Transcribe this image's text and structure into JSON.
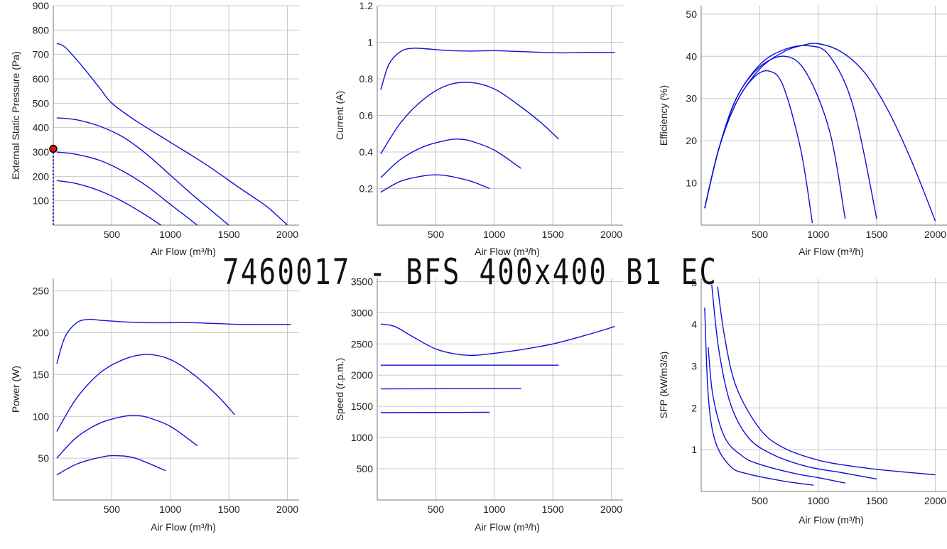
{
  "title": "7460017 - BFS 400x400 B1 EC",
  "colors": {
    "curve": "#1010d8",
    "grid": "#c8c8c8",
    "point_fill": "#dd1010"
  },
  "chart_data": [
    {
      "type": "line",
      "xlabel": "Air Flow (m³/h)",
      "ylabel": "External Static Pressure (Pa)",
      "xlim": [
        0,
        2100
      ],
      "ylim": [
        0,
        900
      ],
      "xticks": [
        "500",
        "1000",
        "1500",
        "2000"
      ],
      "yticks": [
        "100",
        "200",
        "300",
        "400",
        "500",
        "600",
        "700",
        "800",
        "900"
      ],
      "grid": true,
      "operating_point": {
        "x": 0,
        "y": 313
      },
      "series": [
        {
          "x": [
            30,
            100,
            250,
            400,
            500,
            700,
            1000,
            1300,
            1600,
            1800,
            1900,
            2000
          ],
          "y": [
            745,
            730,
            650,
            560,
            500,
            430,
            340,
            250,
            150,
            85,
            45,
            0
          ]
        },
        {
          "x": [
            30,
            200,
            400,
            600,
            800,
            1000,
            1200,
            1400,
            1500
          ],
          "y": [
            440,
            432,
            405,
            360,
            290,
            205,
            120,
            40,
            0
          ]
        },
        {
          "x": [
            30,
            200,
            400,
            600,
            800,
            1000,
            1150,
            1230
          ],
          "y": [
            300,
            290,
            265,
            220,
            160,
            85,
            30,
            0
          ]
        },
        {
          "x": [
            30,
            200,
            400,
            600,
            800,
            920
          ],
          "y": [
            183,
            170,
            140,
            95,
            38,
            0
          ]
        }
      ]
    },
    {
      "type": "line",
      "xlabel": "Air Flow (m³/h)",
      "ylabel": "Current (A)",
      "xlim": [
        0,
        2100
      ],
      "ylim": [
        0,
        1.2
      ],
      "xticks": [
        "500",
        "1000",
        "1500",
        "2000"
      ],
      "yticks": [
        "0.2",
        "0.4",
        "0.6",
        "0.8",
        "1",
        "1.2"
      ],
      "grid": true,
      "series": [
        {
          "x": [
            30,
            100,
            200,
            300,
            400,
            600,
            800,
            1000,
            1200,
            1400,
            1600,
            1800,
            2030
          ],
          "y": [
            0.74,
            0.88,
            0.95,
            0.967,
            0.965,
            0.955,
            0.952,
            0.954,
            0.95,
            0.945,
            0.942,
            0.945,
            0.944
          ]
        },
        {
          "x": [
            30,
            200,
            400,
            600,
            800,
            1000,
            1200,
            1400,
            1550
          ],
          "y": [
            0.39,
            0.56,
            0.69,
            0.765,
            0.78,
            0.745,
            0.66,
            0.56,
            0.47
          ]
        },
        {
          "x": [
            30,
            200,
            400,
            600,
            700,
            800,
            1000,
            1230
          ],
          "y": [
            0.26,
            0.36,
            0.43,
            0.465,
            0.47,
            0.46,
            0.41,
            0.31
          ]
        },
        {
          "x": [
            30,
            200,
            400,
            500,
            600,
            800,
            960
          ],
          "y": [
            0.18,
            0.24,
            0.27,
            0.275,
            0.27,
            0.24,
            0.2
          ]
        }
      ]
    },
    {
      "type": "line",
      "xlabel": "Air Flow (m³/h)",
      "ylabel": "Efficiency (%)",
      "xlim": [
        0,
        2100
      ],
      "ylim": [
        0,
        52
      ],
      "xticks": [
        "500",
        "1000",
        "1500",
        "2000"
      ],
      "yticks": [
        "10",
        "20",
        "30",
        "40",
        "50"
      ],
      "grid": true,
      "series": [
        {
          "x": [
            30,
            150,
            300,
            500,
            700,
            850,
            1000,
            1200,
            1400,
            1600,
            1800,
            2000
          ],
          "y": [
            4,
            18,
            29,
            37,
            41,
            42.5,
            43,
            41,
            36,
            27,
            15,
            1
          ]
        },
        {
          "x": [
            30,
            150,
            300,
            500,
            700,
            920,
            1100,
            1300,
            1500
          ],
          "y": [
            4,
            18,
            30,
            38,
            41.5,
            42.5,
            40,
            28,
            1.5
          ]
        },
        {
          "x": [
            30,
            150,
            300,
            500,
            720,
            900,
            1100,
            1230
          ],
          "y": [
            4,
            18,
            30,
            37.5,
            40,
            36,
            22,
            1.5
          ]
        },
        {
          "x": [
            30,
            150,
            300,
            450,
            580,
            700,
            850,
            950
          ],
          "y": [
            4,
            18,
            29,
            35,
            36.5,
            33,
            18,
            0.5
          ]
        }
      ]
    },
    {
      "type": "line",
      "xlabel": "Air Flow (m³/h)",
      "ylabel": "Power (W)",
      "xlim": [
        0,
        2100
      ],
      "ylim": [
        0,
        265
      ],
      "xticks": [
        "500",
        "1000",
        "1500",
        "2000"
      ],
      "yticks": [
        "50",
        "100",
        "150",
        "200",
        "250"
      ],
      "grid": true,
      "series": [
        {
          "x": [
            30,
            100,
            200,
            300,
            400,
            600,
            800,
            1000,
            1200,
            1400,
            1600,
            1800,
            2030
          ],
          "y": [
            163,
            195,
            212,
            216,
            215,
            213,
            212,
            212,
            212,
            211,
            210,
            210,
            210
          ]
        },
        {
          "x": [
            30,
            200,
            400,
            600,
            800,
            1000,
            1200,
            1400,
            1550
          ],
          "y": [
            82,
            122,
            152,
            168,
            174,
            168,
            150,
            125,
            102
          ]
        },
        {
          "x": [
            30,
            200,
            400,
            600,
            700,
            800,
            1000,
            1230
          ],
          "y": [
            50,
            75,
            92,
            100,
            101,
            99,
            88,
            65
          ]
        },
        {
          "x": [
            30,
            200,
            400,
            530,
            700,
            960
          ],
          "y": [
            30,
            43,
            51,
            53,
            50,
            35
          ]
        }
      ]
    },
    {
      "type": "line",
      "xlabel": "Air Flow (m³/h)",
      "ylabel": "Speed (r.p.m.)",
      "xlim": [
        0,
        2100
      ],
      "ylim": [
        0,
        3550
      ],
      "xticks": [
        "500",
        "1000",
        "1500",
        "2000"
      ],
      "yticks": [
        "500",
        "1000",
        "1500",
        "2000",
        "2500",
        "3000",
        "3500"
      ],
      "grid": true,
      "series": [
        {
          "x": [
            30,
            150,
            300,
            500,
            700,
            850,
            1000,
            1200,
            1500,
            1800,
            2030
          ],
          "y": [
            2820,
            2780,
            2620,
            2420,
            2330,
            2320,
            2350,
            2400,
            2500,
            2650,
            2780
          ]
        },
        {
          "x": [
            30,
            1550
          ],
          "y": [
            2160,
            2160
          ]
        },
        {
          "x": [
            30,
            1230
          ],
          "y": [
            1780,
            1785
          ]
        },
        {
          "x": [
            30,
            960
          ],
          "y": [
            1400,
            1405
          ]
        }
      ]
    },
    {
      "type": "line",
      "xlabel": "Air Flow (m³/h)",
      "ylabel": "SFP (kW/m3/s)",
      "xlim": [
        0,
        2100
      ],
      "ylim": [
        0,
        5.1
      ],
      "xticks": [
        "500",
        "1000",
        "1500",
        "2000"
      ],
      "yticks": [
        "1",
        "2",
        "3",
        "4",
        "5"
      ],
      "grid": true,
      "series": [
        {
          "x": [
            140,
            200,
            300,
            500,
            700,
            1000,
            1300,
            1600,
            2000
          ],
          "y": [
            4.9,
            3.7,
            2.5,
            1.5,
            1.05,
            0.75,
            0.6,
            0.5,
            0.4
          ]
        },
        {
          "x": [
            90,
            150,
            250,
            400,
            600,
            900,
            1200,
            1500
          ],
          "y": [
            4.95,
            3.4,
            2.1,
            1.3,
            0.9,
            0.6,
            0.45,
            0.3
          ]
        },
        {
          "x": [
            60,
            100,
            200,
            350,
            500,
            800,
            1000,
            1230
          ],
          "y": [
            3.45,
            2.3,
            1.3,
            0.85,
            0.65,
            0.43,
            0.33,
            0.2
          ]
        },
        {
          "x": [
            30,
            60,
            120,
            250,
            400,
            700,
            960
          ],
          "y": [
            4.4,
            2.3,
            1.2,
            0.6,
            0.42,
            0.25,
            0.15
          ]
        }
      ]
    }
  ]
}
